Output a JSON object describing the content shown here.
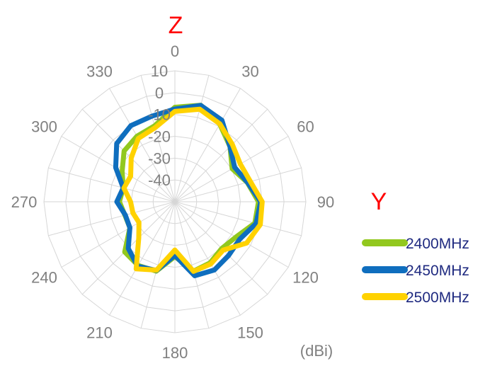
{
  "chart_data": {
    "type": "polar-line",
    "title": "Z",
    "side_label": "Y",
    "unit": "(dBi)",
    "angle_ticks": [
      "0",
      "30",
      "60",
      "90",
      "120",
      "150",
      "180",
      "210",
      "240",
      "270",
      "300",
      "330"
    ],
    "radial_ticks": [
      "10",
      "0",
      "-10",
      "-20",
      "-30",
      "-40"
    ],
    "radial_range": [
      -50,
      10
    ],
    "angle_step_deg": 15,
    "grid": true,
    "legend_position": "right",
    "series": [
      {
        "name": "2400MHz",
        "color": "#92c81e",
        "values": [
          -6.7,
          -4.2,
          -8.9,
          -14.3,
          -19.7,
          -15.7,
          -11.7,
          -12.1,
          -17.7,
          -19.7,
          -17.7,
          -17.1,
          -24.9,
          -17.1,
          -16.3,
          -17.5,
          -26.2,
          -26.3,
          -24.6,
          -25.5,
          -22.1,
          -17.1,
          -15.3,
          -14.0
        ]
      },
      {
        "name": "2450MHz",
        "color": "#0f6ebe",
        "values": [
          -7.5,
          -4.3,
          -6.9,
          -14.3,
          -18.4,
          -15.6,
          -10.7,
          -11.5,
          -15.7,
          -15.2,
          -13.9,
          -14.9,
          -25.4,
          -17.4,
          -15.9,
          -19.8,
          -26.2,
          -26.5,
          -23.4,
          -25.5,
          -18.7,
          -12.3,
          -9.7,
          -9.4
        ]
      },
      {
        "name": "2500MHz",
        "color": "#ffd200",
        "values": [
          -8.6,
          -6.1,
          -8.8,
          -12.8,
          -15.4,
          -14.2,
          -10.0,
          -9.5,
          -12.1,
          -18.7,
          -17.1,
          -17.0,
          -27.9,
          -17.6,
          -14.5,
          -26.6,
          -31.0,
          -30.1,
          -29.7,
          -25.8,
          -26.6,
          -21.7,
          -16.5,
          -14.9
        ]
      }
    ]
  }
}
